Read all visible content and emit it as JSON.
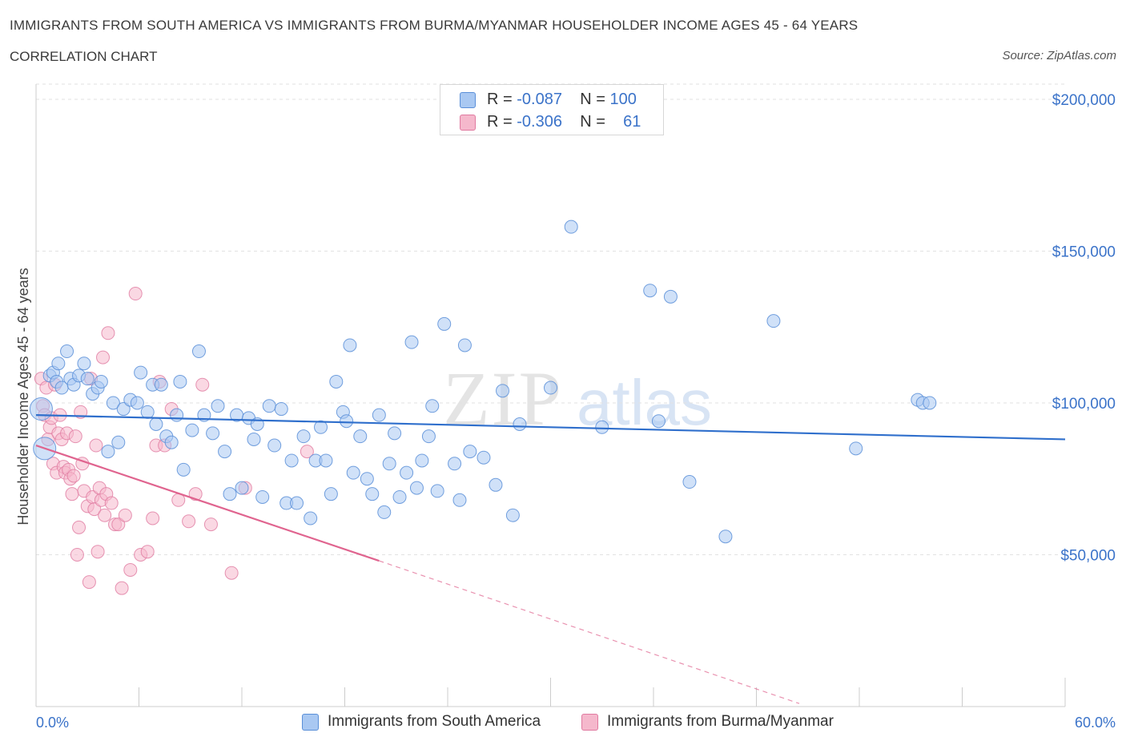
{
  "title": "IMMIGRANTS FROM SOUTH AMERICA VS IMMIGRANTS FROM BURMA/MYANMAR HOUSEHOLDER INCOME AGES 45 - 64 YEARS",
  "subtitle": "CORRELATION CHART",
  "source": "Source: ZipAtlas.com",
  "watermark": {
    "zip": "ZIP",
    "atlas": "atlas"
  },
  "legend": {
    "r_label": "R =",
    "n_label": "N =",
    "rows": [
      {
        "r": "-0.087",
        "n": "100",
        "color": "#a9c8f2"
      },
      {
        "r": "-0.306",
        "n": "61",
        "color": "#f5b8cc"
      }
    ]
  },
  "colors": {
    "blue_fill": "#a9c8f2",
    "blue_stroke": "#5a8fd8",
    "blue_line": "#2f6fcc",
    "pink_fill": "#f5b8cc",
    "pink_stroke": "#e07aa0",
    "pink_line": "#e0648f",
    "tick_text": "#3b73c9",
    "grid": "#e2e2e2"
  },
  "chart_data": {
    "type": "scatter",
    "xlabel": "",
    "ylabel": "Householder Income Ages 45 - 64 years",
    "xlim": [
      0,
      60
    ],
    "ylim": [
      0,
      205000
    ],
    "x_tick_labels": {
      "left": "0.0%",
      "right": "60.0%"
    },
    "y_ticks": [
      {
        "value": 50000,
        "label": "$50,000"
      },
      {
        "value": 100000,
        "label": "$100,000"
      },
      {
        "value": 150000,
        "label": "$150,000"
      },
      {
        "value": 200000,
        "label": "$200,000"
      }
    ],
    "grid": "horizontal dashed",
    "series": [
      {
        "name": "Immigrants from South America",
        "r": -0.087,
        "n": 100,
        "trend": {
          "x": [
            0,
            60
          ],
          "y": [
            96000,
            88000
          ]
        },
        "points": [
          [
            0.3,
            98000
          ],
          [
            0.5,
            85000
          ],
          [
            0.8,
            109000
          ],
          [
            1.0,
            110000
          ],
          [
            1.2,
            107000
          ],
          [
            1.3,
            113000
          ],
          [
            1.5,
            105000
          ],
          [
            1.8,
            117000
          ],
          [
            2.0,
            108000
          ],
          [
            2.2,
            106000
          ],
          [
            2.5,
            109000
          ],
          [
            2.8,
            113000
          ],
          [
            3.0,
            108000
          ],
          [
            3.3,
            103000
          ],
          [
            3.6,
            105000
          ],
          [
            3.8,
            107000
          ],
          [
            4.2,
            84000
          ],
          [
            4.5,
            100000
          ],
          [
            4.8,
            87000
          ],
          [
            5.1,
            98000
          ],
          [
            5.5,
            101000
          ],
          [
            5.9,
            100000
          ],
          [
            6.1,
            110000
          ],
          [
            6.5,
            97000
          ],
          [
            6.8,
            106000
          ],
          [
            7.0,
            93000
          ],
          [
            7.3,
            106000
          ],
          [
            7.6,
            89000
          ],
          [
            7.9,
            87000
          ],
          [
            8.2,
            96000
          ],
          [
            8.4,
            107000
          ],
          [
            8.6,
            78000
          ],
          [
            9.1,
            91000
          ],
          [
            9.5,
            117000
          ],
          [
            9.8,
            96000
          ],
          [
            10.3,
            90000
          ],
          [
            10.6,
            99000
          ],
          [
            11.0,
            84000
          ],
          [
            11.3,
            70000
          ],
          [
            11.7,
            96000
          ],
          [
            12.0,
            72000
          ],
          [
            12.4,
            95000
          ],
          [
            12.7,
            88000
          ],
          [
            12.9,
            93000
          ],
          [
            13.2,
            69000
          ],
          [
            13.6,
            99000
          ],
          [
            13.9,
            86000
          ],
          [
            14.3,
            98000
          ],
          [
            14.6,
            67000
          ],
          [
            14.9,
            81000
          ],
          [
            15.2,
            67000
          ],
          [
            15.6,
            89000
          ],
          [
            16.0,
            62000
          ],
          [
            16.3,
            81000
          ],
          [
            16.6,
            92000
          ],
          [
            16.9,
            81000
          ],
          [
            17.2,
            70000
          ],
          [
            17.5,
            107000
          ],
          [
            17.9,
            97000
          ],
          [
            18.1,
            94000
          ],
          [
            18.3,
            119000
          ],
          [
            18.5,
            77000
          ],
          [
            18.9,
            89000
          ],
          [
            19.3,
            75000
          ],
          [
            19.6,
            70000
          ],
          [
            20.0,
            96000
          ],
          [
            20.3,
            64000
          ],
          [
            20.6,
            80000
          ],
          [
            20.9,
            90000
          ],
          [
            21.2,
            69000
          ],
          [
            21.6,
            77000
          ],
          [
            21.9,
            120000
          ],
          [
            22.2,
            72000
          ],
          [
            22.5,
            81000
          ],
          [
            22.9,
            89000
          ],
          [
            23.1,
            99000
          ],
          [
            23.4,
            71000
          ],
          [
            23.8,
            126000
          ],
          [
            24.4,
            80000
          ],
          [
            24.7,
            68000
          ],
          [
            25.0,
            119000
          ],
          [
            25.3,
            84000
          ],
          [
            26.1,
            82000
          ],
          [
            26.8,
            73000
          ],
          [
            27.2,
            104000
          ],
          [
            27.8,
            63000
          ],
          [
            28.2,
            93000
          ],
          [
            30.0,
            105000
          ],
          [
            31.2,
            158000
          ],
          [
            33.0,
            92000
          ],
          [
            35.8,
            137000
          ],
          [
            36.3,
            94000
          ],
          [
            37.0,
            135000
          ],
          [
            38.1,
            74000
          ],
          [
            40.2,
            56000
          ],
          [
            43.0,
            127000
          ],
          [
            47.8,
            85000
          ],
          [
            51.4,
            101000
          ],
          [
            51.7,
            100000
          ],
          [
            52.1,
            100000
          ]
        ]
      },
      {
        "name": "Immigrants from Burma/Myanmar",
        "r": -0.306,
        "n": 61,
        "trend": {
          "x": [
            0,
            20
          ],
          "y": [
            86000,
            48000
          ]
        },
        "trend_extension": {
          "x": [
            20,
            44.5
          ],
          "y": [
            48000,
            1000
          ]
        },
        "points": [
          [
            0.3,
            108000
          ],
          [
            0.4,
            99000
          ],
          [
            0.5,
            96000
          ],
          [
            0.6,
            105000
          ],
          [
            0.7,
            88000
          ],
          [
            0.8,
            92000
          ],
          [
            0.9,
            95000
          ],
          [
            1.0,
            80000
          ],
          [
            1.1,
            106000
          ],
          [
            1.2,
            77000
          ],
          [
            1.3,
            90000
          ],
          [
            1.4,
            96000
          ],
          [
            1.5,
            88000
          ],
          [
            1.6,
            79000
          ],
          [
            1.7,
            77000
          ],
          [
            1.8,
            90000
          ],
          [
            1.9,
            78000
          ],
          [
            2.0,
            75000
          ],
          [
            2.1,
            70000
          ],
          [
            2.2,
            76000
          ],
          [
            2.3,
            89000
          ],
          [
            2.4,
            50000
          ],
          [
            2.5,
            59000
          ],
          [
            2.6,
            97000
          ],
          [
            2.7,
            80000
          ],
          [
            2.8,
            71000
          ],
          [
            3.0,
            66000
          ],
          [
            3.1,
            41000
          ],
          [
            3.2,
            108000
          ],
          [
            3.3,
            69000
          ],
          [
            3.4,
            65000
          ],
          [
            3.5,
            86000
          ],
          [
            3.6,
            51000
          ],
          [
            3.7,
            72000
          ],
          [
            3.8,
            68000
          ],
          [
            3.9,
            115000
          ],
          [
            4.0,
            63000
          ],
          [
            4.1,
            70000
          ],
          [
            4.2,
            123000
          ],
          [
            4.4,
            67000
          ],
          [
            4.6,
            60000
          ],
          [
            4.8,
            60000
          ],
          [
            5.0,
            39000
          ],
          [
            5.2,
            63000
          ],
          [
            5.5,
            45000
          ],
          [
            5.8,
            136000
          ],
          [
            6.1,
            50000
          ],
          [
            6.5,
            51000
          ],
          [
            6.8,
            62000
          ],
          [
            7.0,
            86000
          ],
          [
            7.2,
            107000
          ],
          [
            7.5,
            86000
          ],
          [
            7.9,
            98000
          ],
          [
            8.3,
            68000
          ],
          [
            8.9,
            61000
          ],
          [
            9.3,
            70000
          ],
          [
            9.7,
            106000
          ],
          [
            10.2,
            60000
          ],
          [
            11.4,
            44000
          ],
          [
            12.2,
            72000
          ],
          [
            15.8,
            84000
          ]
        ]
      }
    ]
  }
}
